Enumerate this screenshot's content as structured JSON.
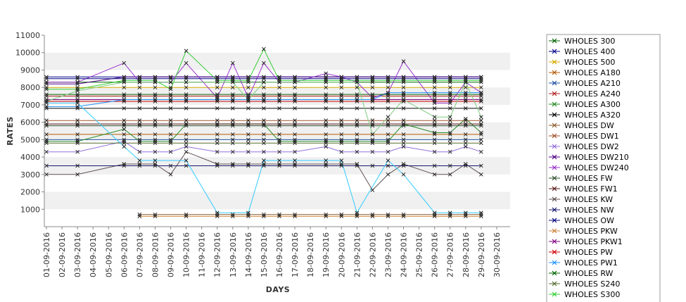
{
  "chart_data": {
    "type": "line",
    "xlabel": "DAYS",
    "ylabel": "RATES",
    "ylim": [
      0,
      11000
    ],
    "ytick_labels": [
      "1000",
      "2000",
      "3000",
      "4000",
      "5000",
      "6000",
      "7000",
      "8000",
      "9000",
      "10000",
      "11000"
    ],
    "grid": "alternating horizontal bands",
    "legend_position": "right",
    "categories": [
      "01-09-2016",
      "02-09-2016",
      "03-09-2016",
      "04-09-2016",
      "05-09-2016",
      "06-09-2016",
      "07-09-2016",
      "08-09-2016",
      "09-09-2016",
      "10-09-2016",
      "11-09-2016",
      "12-09-2016",
      "13-09-2016",
      "14-09-2016",
      "15-09-2016",
      "16-09-2016",
      "17-09-2016",
      "18-09-2016",
      "19-09-2016",
      "20-09-2016",
      "21-09-2016",
      "22-09-2016",
      "23-09-2016",
      "24-09-2016",
      "25-09-2016",
      "26-09-2016",
      "27-09-2016",
      "28-09-2016",
      "29-09-2016",
      "30-09-2016"
    ],
    "series": [
      {
        "name": "WHOLES 300",
        "color": "#006400",
        "values": [
          8300,
          null,
          8300,
          null,
          null,
          8300,
          8300,
          8300,
          8300,
          8300,
          null,
          8300,
          8300,
          8300,
          8300,
          8300,
          8300,
          null,
          8300,
          8300,
          8300,
          8300,
          8300,
          8300,
          null,
          8300,
          8300,
          8300,
          8300,
          null
        ]
      },
      {
        "name": "WHOLES 400",
        "color": "#00008b",
        "values": [
          8600,
          null,
          8600,
          null,
          null,
          8600,
          8600,
          8600,
          8600,
          8600,
          null,
          8600,
          8600,
          8600,
          8600,
          8600,
          8600,
          null,
          8600,
          8600,
          8600,
          8600,
          8600,
          8600,
          null,
          8600,
          8600,
          8600,
          8600,
          null
        ]
      },
      {
        "name": "WHOLES 500",
        "color": "#d4aa00",
        "values": [
          8000,
          null,
          8000,
          null,
          null,
          8000,
          8000,
          8000,
          8000,
          8000,
          null,
          8000,
          8000,
          8000,
          8000,
          8000,
          8000,
          null,
          8000,
          8000,
          8000,
          8000,
          8000,
          8000,
          null,
          8000,
          8000,
          8000,
          8000,
          null
        ]
      },
      {
        "name": "WHOLES A180",
        "color": "#b45a00",
        "values": [
          5300,
          null,
          5300,
          null,
          null,
          5300,
          5300,
          5300,
          5300,
          5300,
          null,
          5300,
          5300,
          5300,
          5300,
          5300,
          5300,
          null,
          5300,
          5300,
          5300,
          5300,
          5300,
          5300,
          null,
          5300,
          5300,
          5300,
          5300,
          null
        ]
      },
      {
        "name": "WHOLES A210",
        "color": "#1f4fa0",
        "values": [
          5000,
          null,
          5000,
          null,
          null,
          5000,
          5000,
          5000,
          5000,
          5000,
          null,
          5000,
          5000,
          5000,
          5000,
          5000,
          5000,
          null,
          5000,
          5000,
          5000,
          5000,
          5000,
          5000,
          null,
          5000,
          5000,
          5000,
          5000,
          null
        ]
      },
      {
        "name": "WHOLES A240",
        "color": "#b22222",
        "values": [
          7500,
          null,
          7500,
          null,
          null,
          7500,
          7500,
          7500,
          7500,
          7500,
          null,
          7500,
          7500,
          7500,
          7500,
          7500,
          7500,
          null,
          7500,
          7500,
          7500,
          7500,
          7500,
          7500,
          null,
          7500,
          7500,
          7500,
          7500,
          null
        ]
      },
      {
        "name": "WHOLES A300",
        "color": "#228b22",
        "values": [
          4900,
          null,
          4900,
          null,
          null,
          5600,
          4900,
          4900,
          4900,
          5900,
          null,
          5900,
          5900,
          5900,
          5900,
          4900,
          4900,
          null,
          4900,
          4900,
          4900,
          4900,
          4900,
          5900,
          null,
          5400,
          5400,
          6200,
          5400,
          null
        ]
      },
      {
        "name": "WHOLES A320",
        "color": "#000000",
        "values": [
          6800,
          null,
          6800,
          null,
          null,
          6800,
          6800,
          6800,
          6800,
          6800,
          null,
          6800,
          6800,
          6800,
          6800,
          6800,
          6800,
          null,
          6800,
          6800,
          6800,
          6800,
          6800,
          6800,
          null,
          6800,
          6800,
          6800,
          6800,
          null
        ]
      },
      {
        "name": "WHOLES DW",
        "color": "#8b5a2b",
        "values": [
          null,
          null,
          null,
          null,
          null,
          null,
          700,
          700,
          null,
          700,
          null,
          700,
          700,
          700,
          700,
          700,
          700,
          null,
          700,
          700,
          700,
          700,
          700,
          700,
          null,
          700,
          700,
          700,
          700,
          null
        ]
      },
      {
        "name": "WHOLES DW1",
        "color": "#a0522d",
        "values": [
          6100,
          null,
          6100,
          null,
          null,
          6100,
          6100,
          6100,
          6100,
          6100,
          null,
          6100,
          6100,
          6100,
          6100,
          6100,
          6100,
          null,
          6100,
          6100,
          6100,
          6100,
          6100,
          6100,
          null,
          6100,
          6100,
          6100,
          6100,
          null
        ]
      },
      {
        "name": "WHOLES DW2",
        "color": "#9370db",
        "values": [
          4300,
          null,
          4300,
          null,
          null,
          4900,
          4300,
          4300,
          4300,
          4600,
          null,
          4300,
          4300,
          4300,
          4300,
          4300,
          4300,
          null,
          4600,
          4300,
          4300,
          4300,
          4300,
          4600,
          null,
          4300,
          4300,
          4600,
          4300,
          null
        ]
      },
      {
        "name": "WHOLES DW210",
        "color": "#4b0082",
        "values": [
          8200,
          null,
          8200,
          null,
          null,
          8600,
          8600,
          8600,
          8600,
          8600,
          null,
          8600,
          8600,
          8600,
          8600,
          8600,
          8600,
          null,
          8600,
          8600,
          8600,
          8600,
          8600,
          8600,
          null,
          8600,
          8600,
          8600,
          8600,
          null
        ]
      },
      {
        "name": "WHOLES DW240",
        "color": "#9932cc",
        "values": [
          8300,
          null,
          8300,
          null,
          null,
          9400,
          8300,
          8300,
          8300,
          9400,
          null,
          7400,
          9400,
          7400,
          9400,
          8300,
          8300,
          null,
          8800,
          8600,
          8300,
          7400,
          7700,
          9500,
          null,
          7100,
          7100,
          8300,
          7700,
          null
        ]
      },
      {
        "name": "WHOLES FW",
        "color": "#2f4f2f",
        "values": [
          5800,
          null,
          5800,
          null,
          null,
          5800,
          5800,
          5800,
          5800,
          5800,
          null,
          5800,
          5800,
          5800,
          5800,
          5800,
          5800,
          null,
          5800,
          5800,
          5800,
          5800,
          5800,
          5800,
          null,
          5800,
          5800,
          5800,
          5800,
          null
        ]
      },
      {
        "name": "WHOLES FW1",
        "color": "#5c1a1a",
        "values": [
          5900,
          null,
          5900,
          null,
          null,
          5900,
          5900,
          5900,
          5900,
          5900,
          null,
          5900,
          5900,
          5900,
          5900,
          5900,
          5900,
          null,
          5900,
          5900,
          5900,
          5900,
          5900,
          5900,
          null,
          5900,
          5900,
          5900,
          5900,
          null
        ]
      },
      {
        "name": "WHOLES KW",
        "color": "#5f4f4f",
        "values": [
          3000,
          null,
          3000,
          null,
          null,
          3600,
          3600,
          3600,
          3000,
          4300,
          null,
          3600,
          3600,
          3600,
          3600,
          3600,
          3600,
          null,
          3600,
          3600,
          3600,
          2100,
          3000,
          3600,
          null,
          3000,
          3000,
          3600,
          3000,
          null
        ]
      },
      {
        "name": "WHOLES NW",
        "color": "#191970",
        "values": [
          3500,
          null,
          3500,
          null,
          null,
          3500,
          3500,
          3500,
          3500,
          3500,
          null,
          3500,
          3500,
          3500,
          3500,
          3500,
          3500,
          null,
          3500,
          3500,
          3500,
          3500,
          3500,
          3500,
          null,
          3500,
          3500,
          3500,
          3500,
          null
        ]
      },
      {
        "name": "WHOLES OW",
        "color": "#000080",
        "values": [
          8500,
          null,
          8500,
          null,
          null,
          8500,
          8500,
          8500,
          8500,
          8500,
          null,
          8500,
          8500,
          8500,
          8500,
          8500,
          8500,
          null,
          8500,
          8500,
          8500,
          8500,
          8500,
          8500,
          null,
          8500,
          8500,
          8500,
          8500,
          null
        ]
      },
      {
        "name": "WHOLES PKW",
        "color": "#cd853f",
        "values": [
          null,
          null,
          null,
          null,
          null,
          null,
          600,
          600,
          null,
          600,
          null,
          600,
          600,
          600,
          600,
          600,
          600,
          null,
          600,
          600,
          600,
          600,
          600,
          600,
          null,
          600,
          600,
          600,
          600,
          null
        ]
      },
      {
        "name": "WHOLES PKW1",
        "color": "#800080",
        "values": [
          7300,
          null,
          7300,
          null,
          null,
          7300,
          7300,
          7300,
          7300,
          7300,
          null,
          7300,
          7300,
          7300,
          7300,
          7300,
          7300,
          null,
          7300,
          7300,
          7300,
          7300,
          7300,
          7300,
          null,
          7300,
          7300,
          7300,
          7300,
          null
        ]
      },
      {
        "name": "WHOLES PW",
        "color": "#cc0000",
        "values": [
          7200,
          null,
          7200,
          null,
          null,
          7200,
          7200,
          7200,
          7200,
          7200,
          null,
          7200,
          7200,
          7200,
          7200,
          7200,
          7200,
          null,
          7200,
          7200,
          7200,
          7200,
          7200,
          7200,
          null,
          7200,
          7200,
          7200,
          7200,
          null
        ]
      },
      {
        "name": "WHOLES PW1",
        "color": "#1e90ff",
        "values": [
          6900,
          null,
          6900,
          null,
          null,
          7300,
          7300,
          7300,
          7300,
          7300,
          null,
          7300,
          7300,
          7300,
          7300,
          7300,
          7300,
          null,
          7300,
          7300,
          7300,
          7300,
          7700,
          7700,
          null,
          7700,
          7700,
          7700,
          7700,
          null
        ]
      },
      {
        "name": "WHOLES RW",
        "color": "#006400",
        "values": [
          7600,
          null,
          7600,
          null,
          null,
          7600,
          7600,
          7600,
          7600,
          7600,
          null,
          7600,
          7600,
          7600,
          7600,
          7600,
          7600,
          null,
          7600,
          7600,
          7600,
          7600,
          7600,
          7600,
          null,
          7600,
          7600,
          7600,
          7600,
          null
        ]
      },
      {
        "name": "WHOLES S240",
        "color": "#556b2f",
        "values": [
          4800,
          null,
          4800,
          null,
          null,
          4800,
          4800,
          4800,
          4800,
          4800,
          null,
          4800,
          4800,
          4800,
          4800,
          4800,
          4800,
          null,
          4800,
          4800,
          4800,
          4800,
          4800,
          4800,
          null,
          4800,
          4800,
          4800,
          4800,
          null
        ]
      },
      {
        "name": "WHOLES S300",
        "color": "#32cd32",
        "values": [
          7900,
          null,
          7900,
          null,
          null,
          8400,
          8400,
          8400,
          7900,
          10100,
          null,
          8400,
          8400,
          8400,
          10200,
          8400,
          8400,
          null,
          8400,
          8400,
          8400,
          8400,
          8400,
          8400,
          null,
          8400,
          8400,
          8400,
          8400,
          null
        ]
      },
      {
        "name": "",
        "color": "#33ccff",
        "values": [
          7100,
          null,
          7100,
          null,
          null,
          4600,
          3800,
          3800,
          null,
          3800,
          null,
          800,
          null,
          800,
          3800,
          3800,
          3800,
          null,
          3800,
          3800,
          800,
          null,
          3800,
          3000,
          null,
          800,
          800,
          800,
          800,
          null
        ]
      },
      {
        "name": "",
        "color": "#7fcc7f",
        "values": [
          7200,
          null,
          7800,
          null,
          null,
          8300,
          8300,
          8300,
          8300,
          8300,
          null,
          8300,
          8300,
          7300,
          8300,
          8300,
          8300,
          null,
          8300,
          8300,
          8300,
          5300,
          6300,
          7300,
          null,
          6300,
          6300,
          8300,
          6300,
          null
        ]
      }
    ]
  }
}
